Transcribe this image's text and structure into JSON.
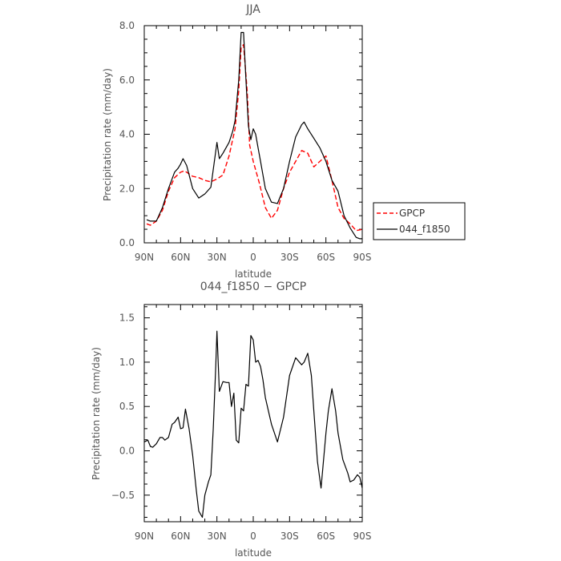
{
  "chart_data": [
    {
      "type": "line",
      "title": "JJA",
      "xlabel": "latitude",
      "ylabel": "Precipitation rate (mm/day)",
      "x_ticks": [
        "90N",
        "60N",
        "30N",
        "0",
        "30S",
        "60S",
        "90S"
      ],
      "y_ticks": [
        "0.0",
        "2.0",
        "4.0",
        "6.0",
        "8.0"
      ],
      "xlim": [
        -90,
        90
      ],
      "ylim": [
        0,
        8
      ],
      "x_note": "x in degrees from 90N (-90) to 90S (90)",
      "legend_position": "right",
      "series": [
        {
          "name": "GPCP",
          "color": "#ff0000",
          "dash": "dashed",
          "x": [
            -88,
            -85,
            -80,
            -75,
            -70,
            -65,
            -60,
            -57,
            -55,
            -50,
            -45,
            -40,
            -35,
            -30,
            -25,
            -20,
            -15,
            -12,
            -10,
            -8,
            -5,
            -3,
            0,
            5,
            10,
            15,
            20,
            25,
            30,
            35,
            40,
            45,
            50,
            55,
            60,
            65,
            70,
            75,
            80,
            85,
            90
          ],
          "values": [
            0.7,
            0.65,
            0.8,
            1.2,
            1.9,
            2.4,
            2.6,
            2.65,
            2.6,
            2.45,
            2.4,
            2.3,
            2.25,
            2.35,
            2.5,
            3.2,
            4.2,
            5.6,
            7.2,
            7.3,
            5.6,
            3.6,
            3.0,
            2.2,
            1.3,
            0.9,
            1.2,
            2.0,
            2.6,
            3.0,
            3.4,
            3.3,
            2.8,
            3.0,
            3.2,
            2.3,
            1.3,
            0.9,
            0.7,
            0.45,
            0.5
          ]
        },
        {
          "name": "044_f1850",
          "color": "#000000",
          "dash": "solid",
          "x": [
            -88,
            -85,
            -80,
            -75,
            -70,
            -65,
            -62,
            -60,
            -58,
            -55,
            -50,
            -45,
            -40,
            -35,
            -30,
            -28,
            -25,
            -20,
            -17,
            -15,
            -12,
            -10,
            -8,
            -6,
            -4,
            -2,
            0,
            2,
            4,
            6,
            10,
            15,
            20,
            25,
            30,
            35,
            40,
            42,
            45,
            50,
            55,
            60,
            65,
            70,
            75,
            80,
            85,
            88,
            90
          ],
          "values": [
            0.85,
            0.8,
            0.8,
            1.3,
            2.0,
            2.6,
            2.75,
            2.9,
            3.1,
            2.85,
            2.0,
            1.65,
            1.8,
            2.05,
            3.7,
            3.1,
            3.3,
            3.7,
            4.1,
            4.5,
            6.0,
            7.75,
            7.75,
            6.0,
            4.3,
            3.8,
            4.2,
            4.0,
            3.5,
            3.0,
            2.0,
            1.5,
            1.45,
            2.0,
            3.0,
            3.9,
            4.35,
            4.45,
            4.2,
            3.85,
            3.5,
            3.0,
            2.3,
            1.9,
            1.0,
            0.55,
            0.2,
            0.15,
            0.15
          ]
        }
      ]
    },
    {
      "type": "line",
      "title": "044_f1850 − GPCP",
      "xlabel": "latitude",
      "ylabel": "Precipitation rate (mm/day)",
      "x_ticks": [
        "90N",
        "60N",
        "30N",
        "0",
        "30S",
        "60S",
        "90S"
      ],
      "y_ticks": [
        "−0.5",
        "0.0",
        "0.5",
        "1.0",
        "1.5"
      ],
      "xlim": [
        -90,
        90
      ],
      "ylim": [
        -0.8,
        1.65
      ],
      "x_note": "x in degrees from 90N (-90) to 90S (90)",
      "series": [
        {
          "color": "#000000",
          "dash": "solid",
          "x": [
            -90,
            -87,
            -85,
            -83,
            -80,
            -77,
            -75,
            -73,
            -70,
            -67,
            -65,
            -62,
            -60,
            -58,
            -56,
            -53,
            -50,
            -47,
            -45,
            -42,
            -40,
            -37,
            -35,
            -33,
            -31,
            -30,
            -28,
            -25,
            -22,
            -20,
            -18,
            -16,
            -14,
            -12,
            -10,
            -8,
            -6,
            -4,
            -2,
            0,
            2,
            4,
            6,
            8,
            10,
            15,
            20,
            25,
            30,
            35,
            40,
            42,
            45,
            48,
            50,
            53,
            56,
            60,
            62,
            65,
            68,
            70,
            74,
            78,
            80,
            83,
            86,
            88,
            90
          ],
          "values": [
            0.1,
            0.12,
            0.05,
            0.04,
            0.08,
            0.15,
            0.15,
            0.12,
            0.15,
            0.3,
            0.32,
            0.38,
            0.25,
            0.26,
            0.47,
            0.25,
            -0.05,
            -0.45,
            -0.68,
            -0.75,
            -0.5,
            -0.35,
            -0.27,
            0.25,
            0.95,
            1.35,
            0.67,
            0.78,
            0.77,
            0.77,
            0.5,
            0.65,
            0.12,
            0.09,
            0.48,
            0.45,
            0.75,
            0.73,
            1.3,
            1.25,
            1.0,
            1.02,
            0.95,
            0.8,
            0.6,
            0.3,
            0.1,
            0.38,
            0.85,
            1.05,
            0.97,
            1.0,
            1.1,
            0.85,
            0.45,
            -0.12,
            -0.42,
            0.2,
            0.45,
            0.7,
            0.45,
            0.2,
            -0.1,
            -0.25,
            -0.35,
            -0.33,
            -0.27,
            -0.3,
            -0.42
          ]
        }
      ]
    }
  ]
}
